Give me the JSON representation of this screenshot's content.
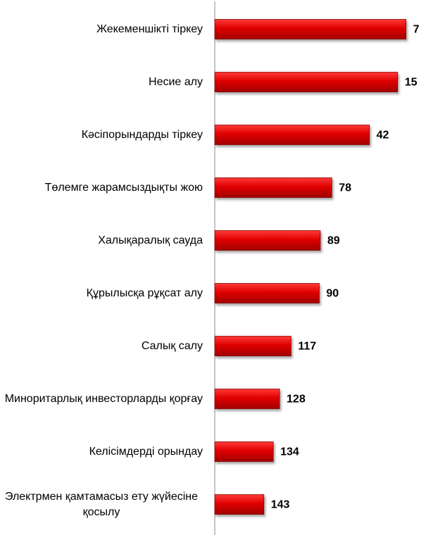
{
  "chart_data": {
    "type": "bar",
    "orientation": "horizontal",
    "categories": [
      "Жекеменшікті тіркеу",
      "Несие алу",
      "Кәсіпорындарды тіркеу",
      "Төлемге жарамсыздықты жою",
      "Халықаралық сауда",
      "Құрылысқа рұқсат алу",
      "Салық салу",
      "Миноритарлық инвесторларды қорғау",
      "Келісімдерді орындау",
      "Электрмен қамтамасыз ету жүйесіне қосылу"
    ],
    "values": [
      7,
      15,
      42,
      78,
      89,
      90,
      117,
      128,
      134,
      143
    ],
    "color": "#e00000",
    "xlim": [
      190,
      0
    ]
  }
}
